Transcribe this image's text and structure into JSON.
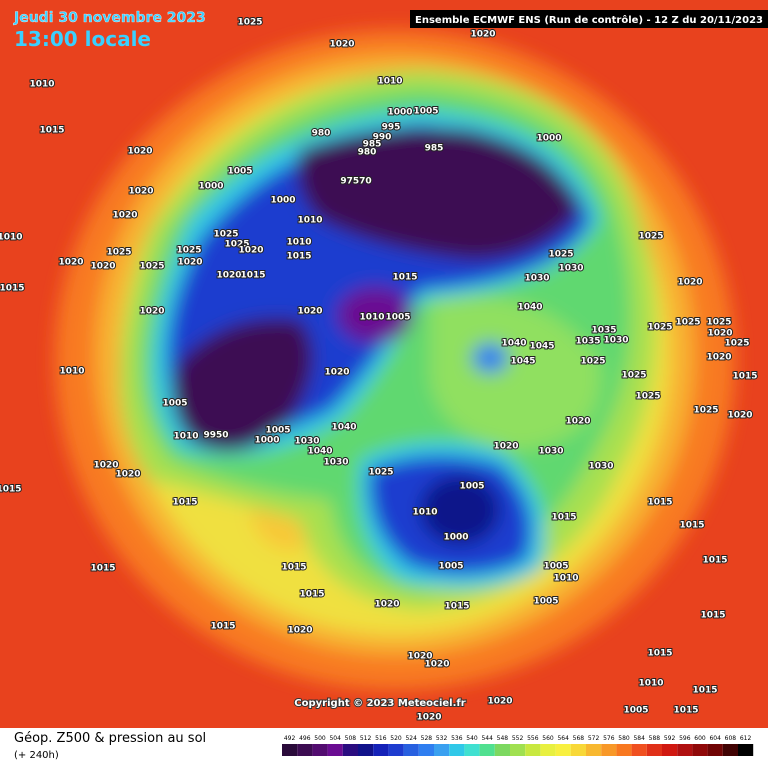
{
  "header": {
    "date": "Jeudi 30 novembre 2023",
    "local_time": "13:00 locale",
    "run_info": "Ensemble ECMWF ENS  (Run de contrôle)  -  12 Z du 20/11/2023"
  },
  "footer": {
    "copyright": "Copyright © 2023 Meteociel.fr",
    "parameter": "Géop. Z500 & pression au sol",
    "lead_time": "(+ 240h)"
  },
  "scale": {
    "values": [
      492,
      496,
      500,
      504,
      508,
      512,
      516,
      520,
      524,
      528,
      532,
      536,
      540,
      544,
      548,
      552,
      556,
      560,
      564,
      568,
      572,
      576,
      580,
      584,
      588,
      592,
      596,
      600,
      604,
      608,
      612
    ],
    "colors": [
      "#2a0a3a",
      "#3c0c52",
      "#520c70",
      "#6a0c92",
      "#2a0c80",
      "#10128a",
      "#1422b8",
      "#1e3ccf",
      "#2860e0",
      "#2f7ef0",
      "#3aa0f0",
      "#30c8e8",
      "#40e0d0",
      "#50e090",
      "#7cd860",
      "#a0e050",
      "#c8e840",
      "#e8f040",
      "#f8f040",
      "#f8d838",
      "#f8b830",
      "#f89828",
      "#f87820",
      "#f05020",
      "#e03018",
      "#d01810",
      "#b01010",
      "#900808",
      "#700404",
      "#400202",
      "#000000"
    ]
  },
  "isobar_labels": [
    "1025",
    "1020",
    "1020",
    "1010",
    "1010",
    "1015",
    "1020",
    "1000",
    "1005",
    "995",
    "980",
    "990",
    "985",
    "985",
    "980",
    "1000",
    "1005",
    "1000",
    "97570",
    "1020",
    "1000",
    "1020",
    "1010",
    "1010",
    "1025",
    "1025",
    "1020",
    "1025",
    "1025",
    "1020",
    "1010",
    "1015",
    "1020",
    "1020",
    "1025",
    "1020",
    "1015",
    "1015",
    "1025",
    "1030",
    "1030",
    "1025",
    "1015",
    "1020",
    "1020",
    "1010",
    "1005",
    "1040",
    "1020",
    "1025",
    "1035",
    "1040",
    "1045",
    "1035",
    "1030",
    "1025",
    "1045",
    "1020",
    "1010",
    "1025",
    "1005",
    "1025",
    "1040",
    "1020",
    "1010",
    "9950",
    "1000",
    "1005",
    "1030",
    "1040",
    "1030",
    "1020",
    "1030",
    "1030",
    "1020",
    "1020",
    "1025",
    "1005",
    "1015",
    "1015",
    "1010",
    "1015",
    "1000",
    "1005",
    "1005",
    "1010",
    "1015",
    "1015",
    "1015",
    "1020",
    "1015",
    "1005",
    "1015",
    "1020",
    "1020",
    "1020",
    "1020",
    "1020",
    "1010",
    "1005",
    "1025",
    "1025",
    "1020",
    "1025",
    "1020",
    "1015",
    "1025",
    "1020",
    "1015",
    "1015",
    "1015",
    "1015",
    "1015",
    "1015",
    "1015"
  ]
}
